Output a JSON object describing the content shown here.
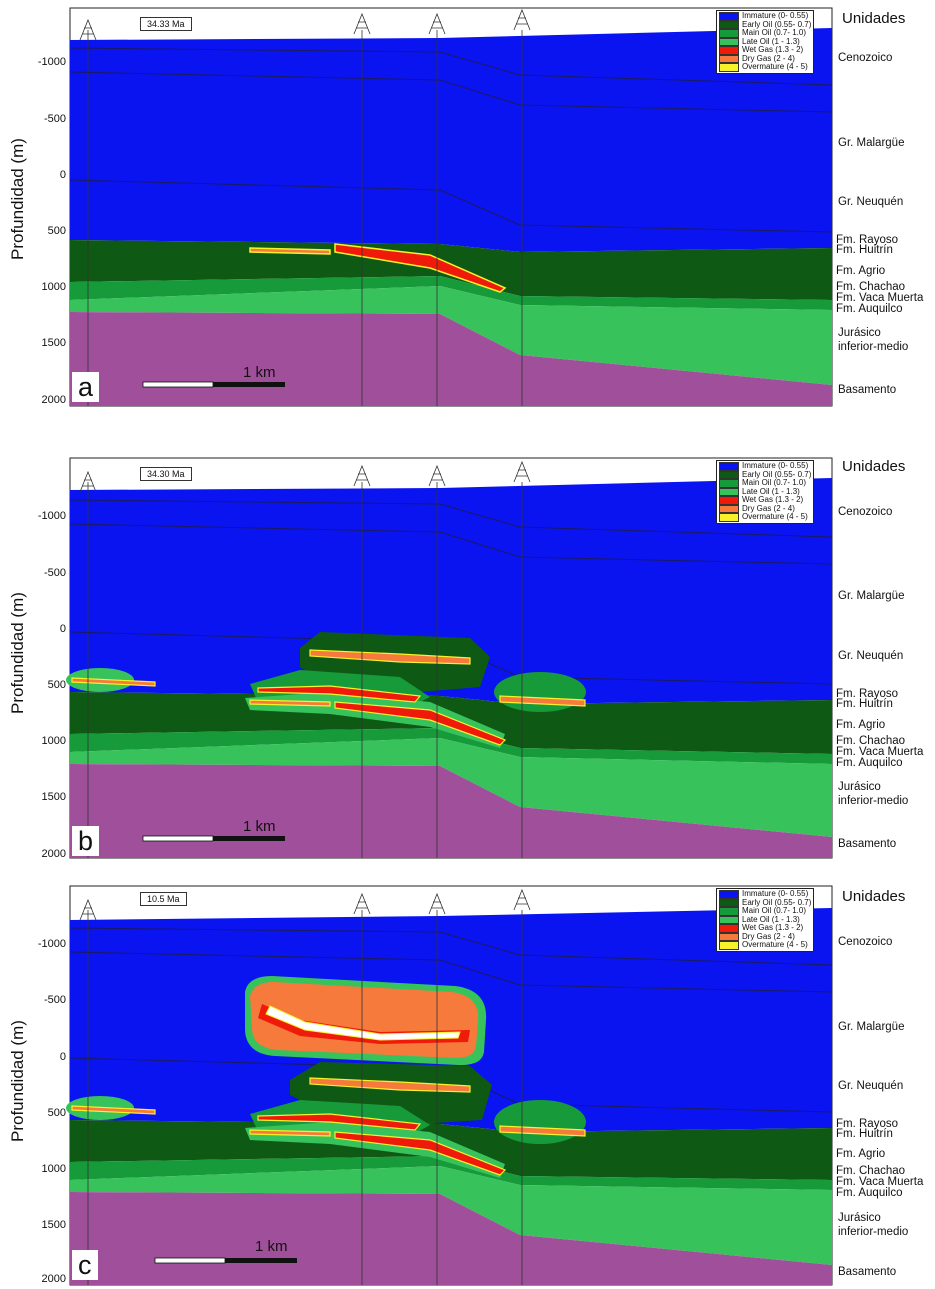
{
  "axis": {
    "ylabel": "Profundidad (m)",
    "ticks": [
      "-1000",
      "-500",
      "0",
      "500",
      "1000",
      "1500",
      "2000"
    ]
  },
  "legend": {
    "items": [
      {
        "label": "Immature (0- 0.55)",
        "color": "#0a14f0"
      },
      {
        "label": "Early Oil (0.55- 0.7)",
        "color": "#0e5a14"
      },
      {
        "label": "Main Oil (0.7- 1.0)",
        "color": "#179a3a"
      },
      {
        "label": "Late Oil (1 - 1.3)",
        "color": "#37c25c"
      },
      {
        "label": "Wet Gas (1.3 - 2)",
        "color": "#f01a0a"
      },
      {
        "label": "Dry Gas (2 - 4)",
        "color": "#f57a3c"
      },
      {
        "label": "Overmature (4 - 5)",
        "color": "#f8f22a"
      }
    ]
  },
  "units": {
    "title": "Unidades",
    "labels": [
      "Cenozoico",
      "Gr. Malargüe",
      "Gr. Neuquén",
      "Fm. Rayoso",
      "Fm. Huitrín",
      "Fm. Agrio",
      "Fm. Chachao",
      "Fm. Vaca Muerta",
      "Fm. Auquilco",
      "Jurásico",
      "inferior-medio",
      "Basamento"
    ]
  },
  "scale_bar": "1 km",
  "colors": {
    "immature": "#0a14f0",
    "early_oil": "#0e5a14",
    "main_oil": "#179a3a",
    "late_oil": "#37c25c",
    "wet_gas": "#f01a0a",
    "dry_gas": "#f57a3c",
    "overmature": "#f8f22a",
    "basement": "#a0509a"
  },
  "panels": [
    {
      "letter": "a",
      "age": "34.33 Ma"
    },
    {
      "letter": "b",
      "age": "34.30 Ma"
    },
    {
      "letter": "c",
      "age": "10.5 Ma"
    }
  ]
}
